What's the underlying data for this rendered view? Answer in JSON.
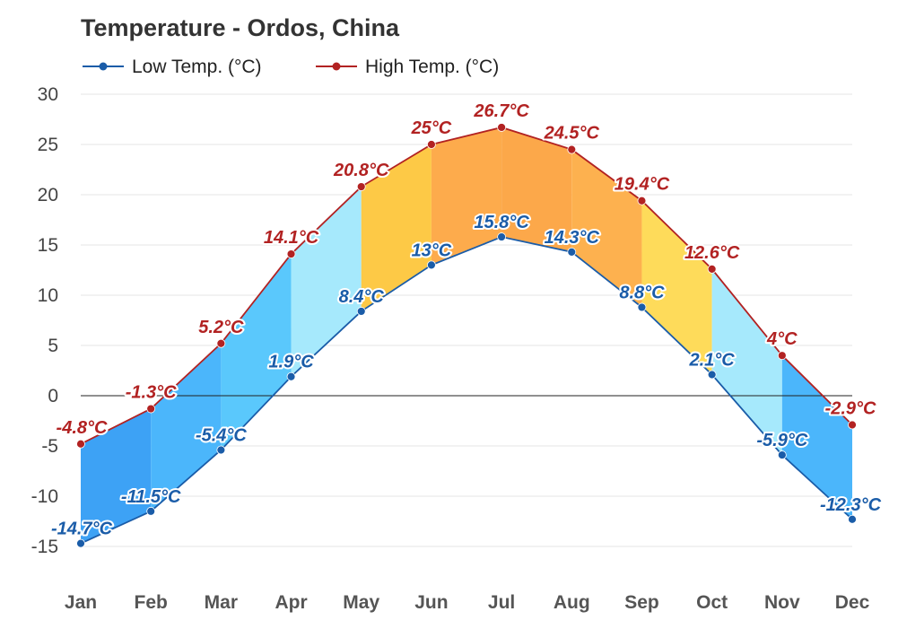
{
  "chart_data": {
    "type": "area",
    "title": "Temperature - Ordos, China",
    "categories": [
      "Jan",
      "Feb",
      "Mar",
      "Apr",
      "May",
      "Jun",
      "Jul",
      "Aug",
      "Sep",
      "Oct",
      "Nov",
      "Dec"
    ],
    "series": [
      {
        "name": "Low Temp. (°C)",
        "color": "#1a5ca8",
        "values": [
          -14.7,
          -11.5,
          -5.4,
          1.9,
          8.4,
          13,
          15.8,
          14.3,
          8.8,
          2.1,
          -5.9,
          -12.3
        ],
        "labels": [
          "-14.7°C",
          "-11.5°C",
          "-5.4°C",
          "1.9°C",
          "8.4°C",
          "13°C",
          "15.8°C",
          "14.3°C",
          "8.8°C",
          "2.1°C",
          "-5.9°C",
          "-12.3°C"
        ]
      },
      {
        "name": "High Temp. (°C)",
        "color": "#b22222",
        "values": [
          -4.8,
          -1.3,
          5.2,
          14.1,
          20.8,
          25,
          26.7,
          24.5,
          19.4,
          12.6,
          4,
          -2.9
        ],
        "labels": [
          "-4.8°C",
          "-1.3°C",
          "5.2°C",
          "14.1°C",
          "20.8°C",
          "25°C",
          "26.7°C",
          "24.5°C",
          "19.4°C",
          "12.6°C",
          "4°C",
          "-2.9°C"
        ]
      }
    ],
    "band_colors": [
      "#3da2f5",
      "#4bb6fb",
      "#5ac8fc",
      "#a6e9fc",
      "#fdc946",
      "#fdab4c",
      "#fca84a",
      "#fdb14f",
      "#fedb5a",
      "#a6e9fc",
      "#4bb6fb",
      "#3d9ff5"
    ],
    "ylim": [
      -15,
      30
    ],
    "yticks": [
      "30",
      "25",
      "20",
      "15",
      "10",
      "5",
      "0",
      "-5",
      "-10",
      "-15"
    ],
    "ytick_values": [
      30,
      25,
      20,
      15,
      10,
      5,
      0,
      -5,
      -10,
      -15
    ],
    "grid": true,
    "legend_position": "top-left"
  }
}
